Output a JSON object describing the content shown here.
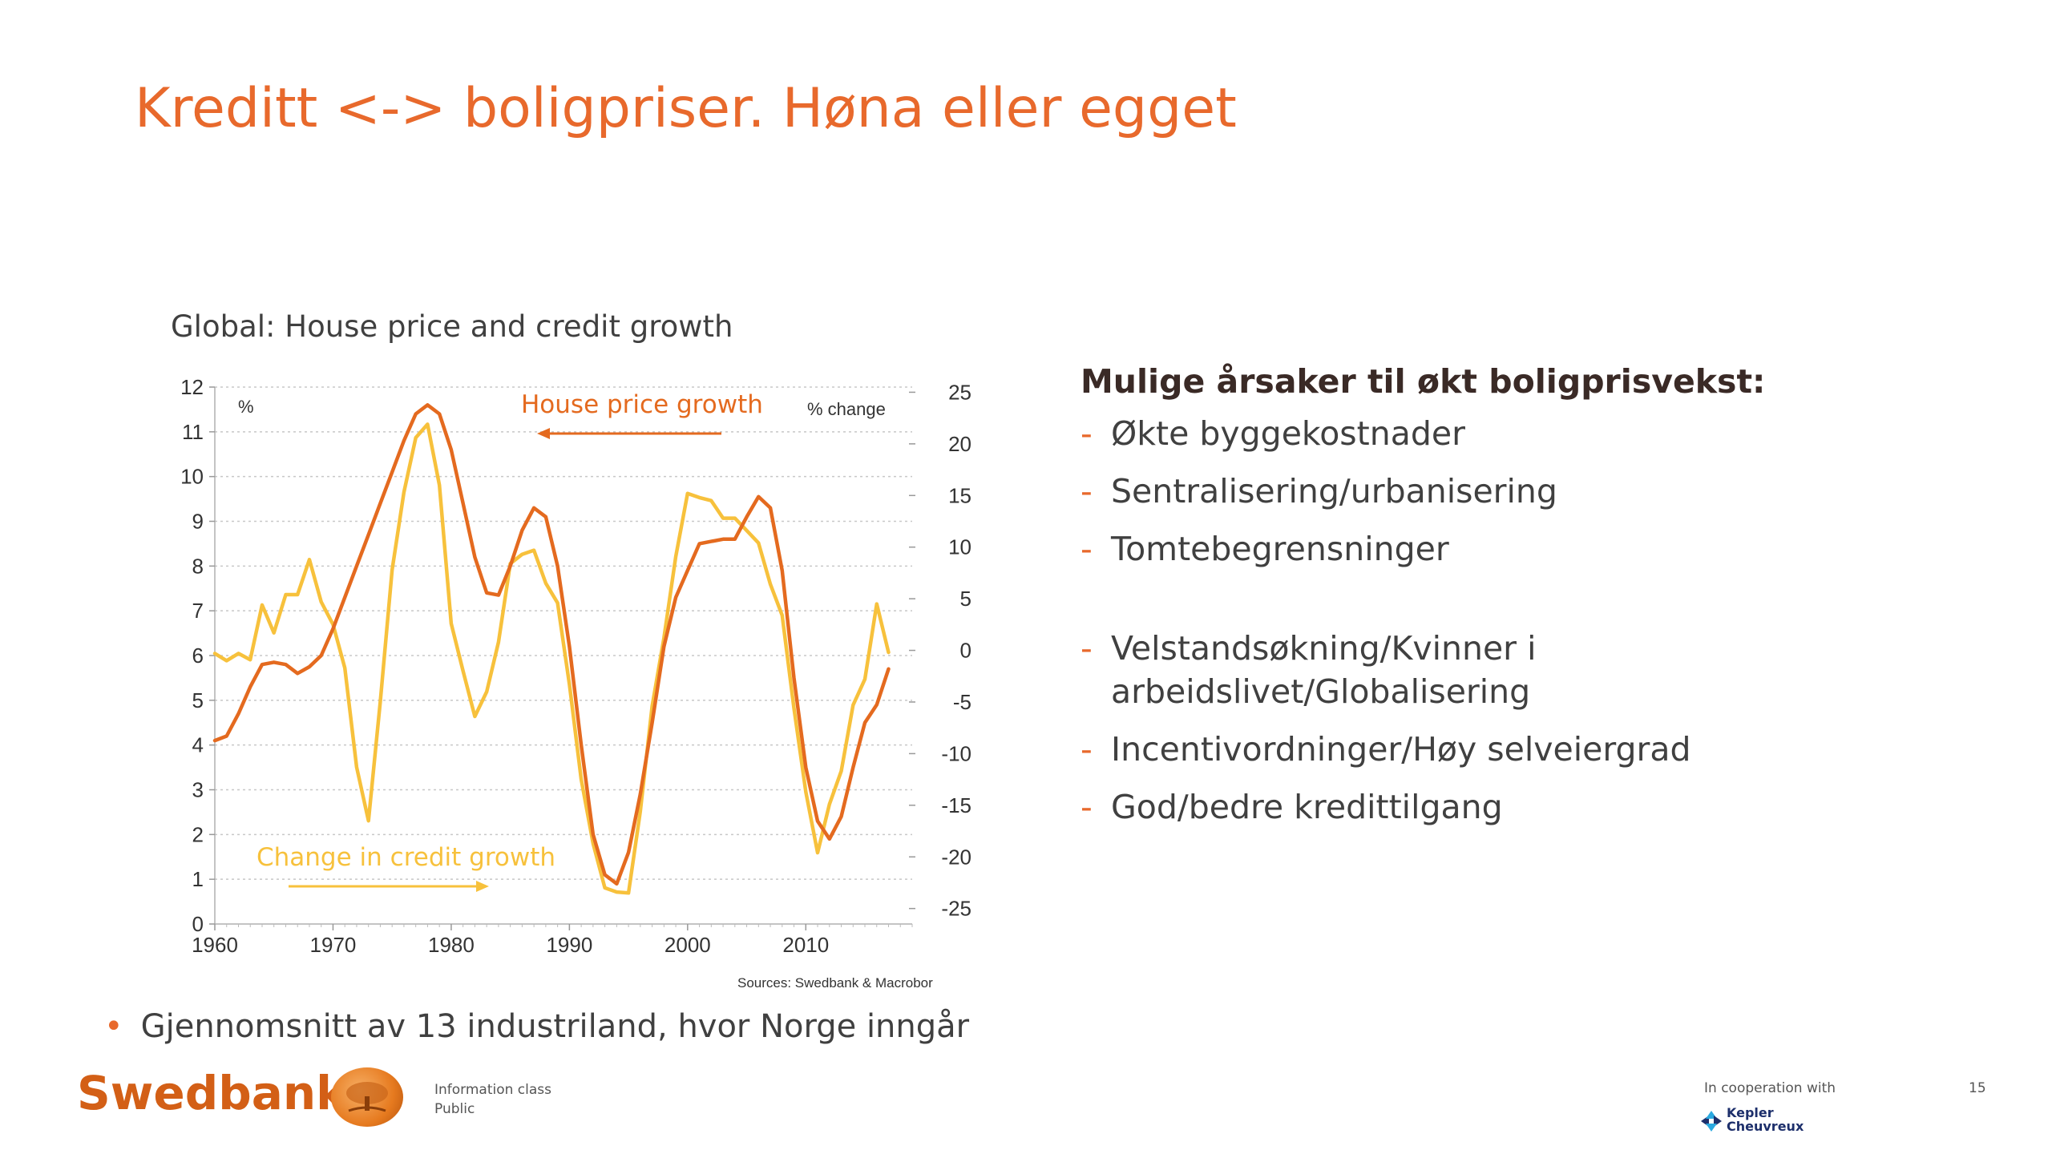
{
  "slide": {
    "title": "Kreditt <-> boligpriser. Høna eller egget",
    "page_number": "15"
  },
  "chart_data": {
    "type": "line",
    "title": "Global: House price and credit growth",
    "left_axis_unit": "%",
    "right_axis_unit": "% change",
    "source": "Sources: Swedbank & Macrobor",
    "xlim": [
      1960,
      2019
    ],
    "x_ticks": [
      1960,
      1970,
      1980,
      1990,
      2000,
      2010
    ],
    "left_ylim": [
      0,
      12
    ],
    "left_ticks": [
      0,
      1,
      2,
      3,
      4,
      5,
      6,
      7,
      8,
      9,
      10,
      11,
      12
    ],
    "right_ylim": [
      -26.5,
      25.5
    ],
    "right_ticks": [
      25,
      20,
      15,
      10,
      5,
      0,
      -5,
      -10,
      -15,
      -20,
      -25
    ],
    "grid": "horizontal dotted",
    "series": [
      {
        "name": "House price growth",
        "axis": "left",
        "color": "#e46a1f",
        "annotation_arrow": "left",
        "points": [
          [
            1960,
            4.1
          ],
          [
            1961,
            4.2
          ],
          [
            1962,
            4.7
          ],
          [
            1963,
            5.3
          ],
          [
            1964,
            5.8
          ],
          [
            1965,
            5.85
          ],
          [
            1966,
            5.8
          ],
          [
            1967,
            5.6
          ],
          [
            1968,
            5.75
          ],
          [
            1969,
            6.0
          ],
          [
            1970,
            6.6
          ],
          [
            1971,
            7.3
          ],
          [
            1972,
            8.0
          ],
          [
            1973,
            8.7
          ],
          [
            1974,
            9.4
          ],
          [
            1975,
            10.1
          ],
          [
            1976,
            10.8
          ],
          [
            1977,
            11.4
          ],
          [
            1978,
            11.6
          ],
          [
            1979,
            11.4
          ],
          [
            1980,
            10.6
          ],
          [
            1981,
            9.4
          ],
          [
            1982,
            8.2
          ],
          [
            1983,
            7.4
          ],
          [
            1984,
            7.35
          ],
          [
            1985,
            8.0
          ],
          [
            1986,
            8.8
          ],
          [
            1987,
            9.3
          ],
          [
            1988,
            9.1
          ],
          [
            1989,
            8.0
          ],
          [
            1990,
            6.2
          ],
          [
            1991,
            4.0
          ],
          [
            1992,
            2.0
          ],
          [
            1993,
            1.1
          ],
          [
            1994,
            0.9
          ],
          [
            1995,
            1.6
          ],
          [
            1996,
            2.9
          ],
          [
            1997,
            4.5
          ],
          [
            1998,
            6.2
          ],
          [
            1999,
            7.3
          ],
          [
            2000,
            7.9
          ],
          [
            2001,
            8.5
          ],
          [
            2002,
            8.55
          ],
          [
            2003,
            8.6
          ],
          [
            2004,
            8.6
          ],
          [
            2005,
            9.1
          ],
          [
            2006,
            9.55
          ],
          [
            2007,
            9.3
          ],
          [
            2008,
            7.9
          ],
          [
            2009,
            5.5
          ],
          [
            2010,
            3.5
          ],
          [
            2011,
            2.3
          ],
          [
            2012,
            1.9
          ],
          [
            2013,
            2.4
          ],
          [
            2014,
            3.5
          ],
          [
            2015,
            4.5
          ],
          [
            2016,
            4.9
          ],
          [
            2017,
            5.7
          ]
        ]
      },
      {
        "name": "Change in credit growth",
        "axis": "right",
        "color": "#f7c13c",
        "annotation_arrow": "right",
        "points": [
          [
            1960,
            -0.3
          ],
          [
            1961,
            -1.0
          ],
          [
            1962,
            -0.3
          ],
          [
            1963,
            -0.9
          ],
          [
            1964,
            4.4
          ],
          [
            1965,
            1.7
          ],
          [
            1966,
            5.4
          ],
          [
            1967,
            5.4
          ],
          [
            1968,
            8.8
          ],
          [
            1969,
            4.7
          ],
          [
            1970,
            2.5
          ],
          [
            1971,
            -1.7
          ],
          [
            1972,
            -11.3
          ],
          [
            1973,
            -16.5
          ],
          [
            1974,
            -5.0
          ],
          [
            1975,
            7.8
          ],
          [
            1976,
            15.3
          ],
          [
            1977,
            20.6
          ],
          [
            1978,
            21.9
          ],
          [
            1979,
            16.0
          ],
          [
            1980,
            2.6
          ],
          [
            1981,
            -2.0
          ],
          [
            1982,
            -6.4
          ],
          [
            1983,
            -4.0
          ],
          [
            1984,
            0.8
          ],
          [
            1985,
            8.4
          ],
          [
            1986,
            9.3
          ],
          [
            1987,
            9.7
          ],
          [
            1988,
            6.5
          ],
          [
            1989,
            4.6
          ],
          [
            1990,
            -3.3
          ],
          [
            1991,
            -12.5
          ],
          [
            1992,
            -18.7
          ],
          [
            1993,
            -23.0
          ],
          [
            1994,
            -23.4
          ],
          [
            1995,
            -23.5
          ],
          [
            1996,
            -15.6
          ],
          [
            1997,
            -5.4
          ],
          [
            1998,
            1.2
          ],
          [
            1999,
            9.1
          ],
          [
            2000,
            15.2
          ],
          [
            2001,
            14.8
          ],
          [
            2002,
            14.5
          ],
          [
            2003,
            12.8
          ],
          [
            2004,
            12.8
          ],
          [
            2005,
            11.6
          ],
          [
            2006,
            10.4
          ],
          [
            2007,
            6.4
          ],
          [
            2008,
            3.4
          ],
          [
            2009,
            -5.6
          ],
          [
            2010,
            -13.7
          ],
          [
            2011,
            -19.6
          ],
          [
            2012,
            -14.9
          ],
          [
            2013,
            -11.7
          ],
          [
            2014,
            -5.3
          ],
          [
            2015,
            -2.8
          ],
          [
            2016,
            4.5
          ],
          [
            2017,
            -0.2
          ]
        ]
      }
    ],
    "labels": {
      "house_price": "House price growth",
      "credit": "Change in credit growth"
    }
  },
  "causes": {
    "title": "Mulige årsaker til økt boligprisvekst:",
    "items": [
      "Økte byggekostnader",
      "Sentralisering/urbanisering",
      "Tomtebegrensninger",
      "Velstandsøkning/Kvinner i arbeidslivet/Globalisering",
      "Incentivordninger/Høy selveiergrad",
      "God/bedre kredittilgang"
    ]
  },
  "note": "Gjennomsnitt av 13 industriland, hvor Norge inngår",
  "footer": {
    "brand": "Swedbank",
    "info_class_label": "Information class",
    "info_class_value": "Public",
    "cooperation": "In cooperation with",
    "partner_line1": "Kepler",
    "partner_line2": "Cheuvreux"
  },
  "colors": {
    "accent": "#e8692c",
    "house_price_line": "#e46a1f",
    "credit_line": "#f7c13c",
    "brand": "#d35f16"
  }
}
